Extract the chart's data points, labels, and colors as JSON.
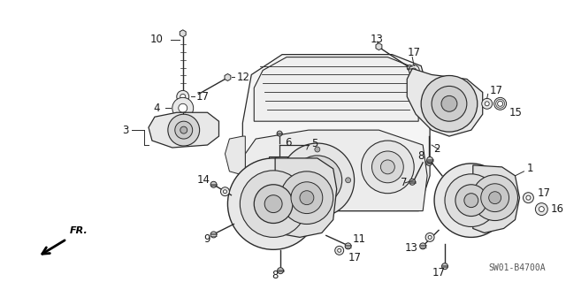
{
  "background_color": "#ffffff",
  "diagram_code": "SW01-B4700A",
  "line_color": "#2a2a2a",
  "text_color": "#1a1a1a",
  "font_size": 8.5,
  "label_font_size": 8.5
}
